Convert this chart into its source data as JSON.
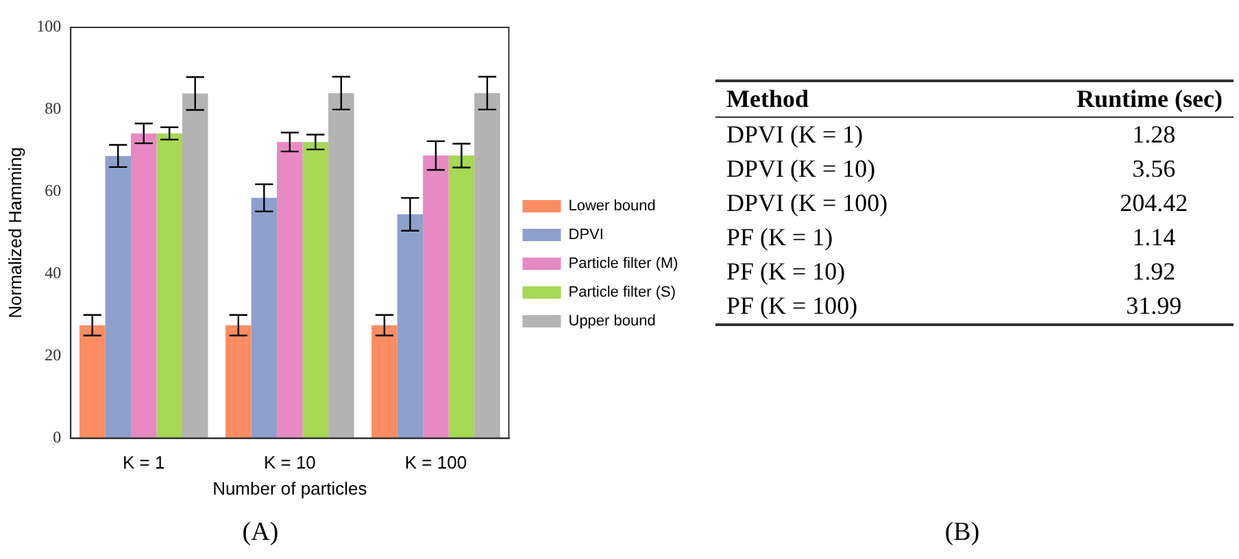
{
  "chart_data": [
    {
      "type": "bar",
      "xlabel": "Number of particles",
      "ylabel": "Normalized Hamming",
      "categories": [
        "K = 1",
        "K = 10",
        "K = 100"
      ],
      "ylim": [
        0,
        100
      ],
      "yticks": [
        0,
        20,
        40,
        60,
        80,
        100
      ],
      "legend": "right",
      "annotations": [
        "(A)"
      ],
      "series": [
        {
          "name": "Lower bound",
          "color": "#fc8d62",
          "values": [
            27.5,
            27.5,
            27.5
          ],
          "errors": [
            2.5,
            2.5,
            2.5
          ]
        },
        {
          "name": "DPVI",
          "color": "#8da0cb",
          "values": [
            68.7,
            58.5,
            54.5
          ],
          "errors": [
            2.7,
            3.3,
            4
          ]
        },
        {
          "name": "Particle filter (M)",
          "color": "#e78ac3",
          "values": [
            74.2,
            72.1,
            68.8
          ],
          "errors": [
            2.4,
            2.3,
            3.5
          ]
        },
        {
          "name": "Particle filter (S)",
          "color": "#a6d854",
          "values": [
            74.2,
            72.1,
            68.8
          ],
          "errors": [
            1.5,
            1.8,
            2.9
          ]
        },
        {
          "name": "Upper bound",
          "color": "#b3b3b3",
          "values": [
            83.9,
            84,
            84
          ],
          "errors": [
            4,
            4,
            4
          ]
        }
      ]
    },
    {
      "type": "other",
      "xlabel": "Method",
      "ylabel": "Runtime (sec)",
      "categories": [
        "DPVI (K = 1)",
        "DPVI (K = 10)",
        "DPVI (K = 100)",
        "PF (K = 1)",
        "PF (K = 10)",
        "PF (K = 100)"
      ],
      "values": [
        1.28,
        3.56,
        204.42,
        1.14,
        1.92,
        31.99
      ],
      "data_labels": true,
      "annotations": [
        "(B)"
      ]
    }
  ]
}
